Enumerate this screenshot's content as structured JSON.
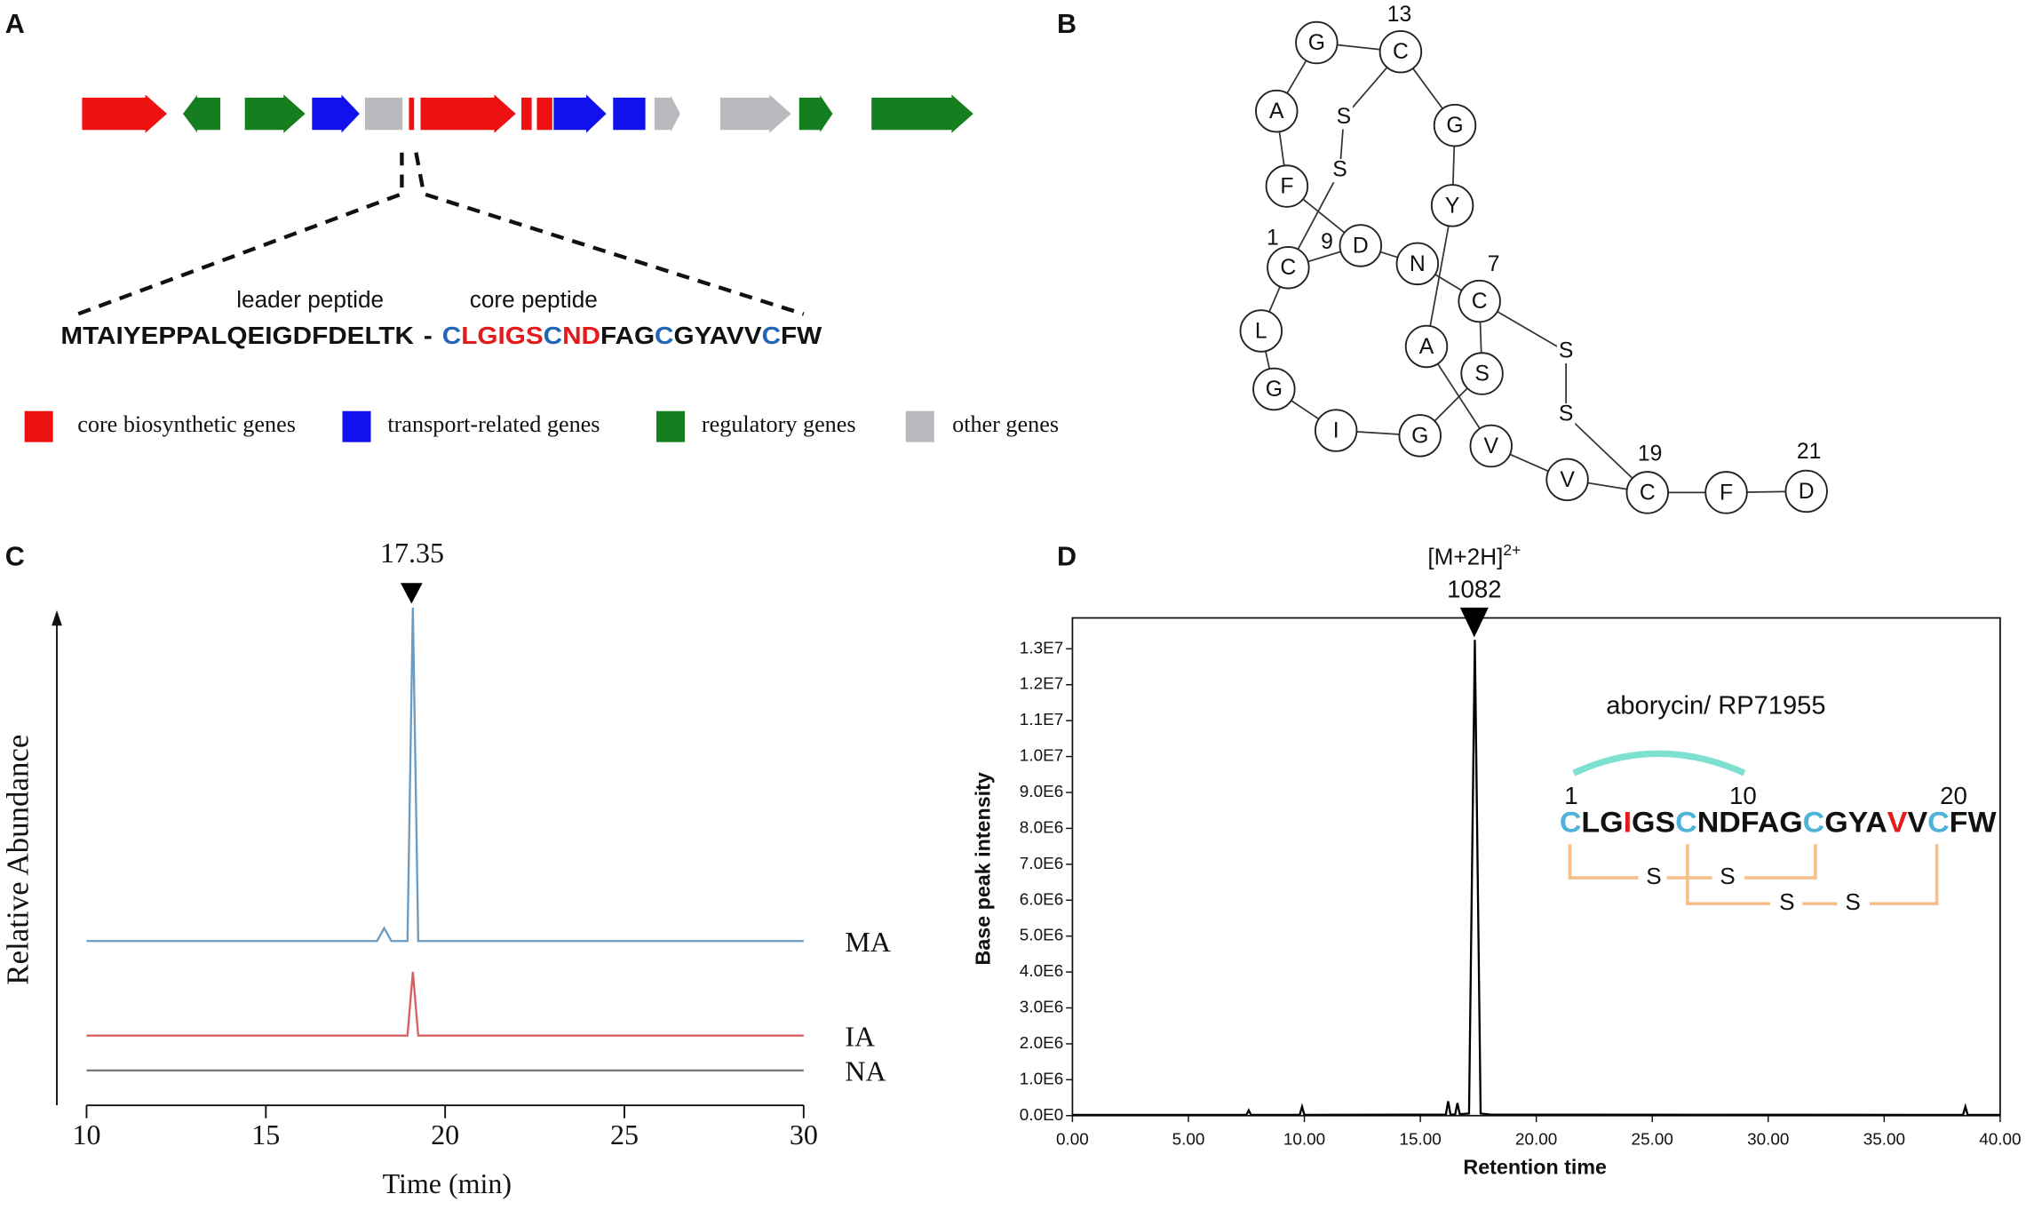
{
  "panel_labels": [
    "A",
    "B",
    "C",
    "D"
  ],
  "panel_a": {
    "leader_label": "leader peptide",
    "core_label": "core peptide",
    "leader_sequence": "MTAIYEPPALQEIGDFDELTK",
    "separator": "-",
    "core_sequence": [
      {
        "text": "C",
        "color": "#2266b8"
      },
      {
        "text": "LGIGS",
        "color": "#e41a1c"
      },
      {
        "text": "C",
        "color": "#2266b8"
      },
      {
        "text": "ND",
        "color": "#e41a1c"
      },
      {
        "text": "FAG",
        "color": "#111111"
      },
      {
        "text": "C",
        "color": "#2266b8"
      },
      {
        "text": "GYAVV",
        "color": "#111111"
      },
      {
        "text": "C",
        "color": "#2266b8"
      },
      {
        "text": "FW",
        "color": "#111111"
      }
    ],
    "legend": [
      {
        "label": "core biosynthetic genes",
        "color": "#ee1111"
      },
      {
        "label": "transport-related genes",
        "color": "#1111ee"
      },
      {
        "label": "regulatory genes",
        "color": "#157f1f"
      },
      {
        "label": "other genes",
        "color": "#b8babd"
      }
    ]
  },
  "panel_b": {
    "residues": [
      "C",
      "L",
      "G",
      "I",
      "G",
      "S",
      "C",
      "N",
      "D",
      "F",
      "A",
      "G",
      "C",
      "G",
      "Y",
      "A",
      "V",
      "V",
      "C",
      "F",
      "D"
    ],
    "position_labels": [
      "13",
      "9",
      "1",
      "7",
      "19",
      "21"
    ],
    "disulfide_atoms": [
      "S",
      "S",
      "S",
      "S"
    ]
  },
  "chart_data": [
    {
      "type": "line",
      "xlabel": "Time (min)",
      "ylabel": "Relative Abundance",
      "xlim": [
        10,
        30
      ],
      "xticks": [
        10,
        15,
        20,
        25,
        30
      ],
      "ylim": [
        0,
        100
      ],
      "peak_label": "17.35",
      "series": [
        {
          "name": "MA",
          "color": "#6a9bc3",
          "x": [
            10,
            18.1,
            18.3,
            18.5,
            18.95,
            19.1,
            19.25,
            30
          ],
          "values": [
            33,
            33,
            35.6,
            33,
            33,
            100,
            33,
            33
          ]
        },
        {
          "name": "IA",
          "color": "#d96060",
          "x": [
            10,
            18.95,
            19.1,
            19.25,
            30
          ],
          "values": [
            14,
            14,
            26.8,
            14,
            14
          ]
        },
        {
          "name": "NA",
          "color": "#777777",
          "x": [
            10,
            30
          ],
          "values": [
            7,
            7
          ]
        }
      ]
    },
    {
      "type": "line",
      "xlabel": "Retention time",
      "ylabel": "Base peak intensity",
      "xlim": [
        0,
        40
      ],
      "ylim": [
        0,
        13860000
      ],
      "xticks": [
        {
          "value": 0,
          "label": "0.00"
        },
        {
          "value": 5,
          "label": "5.00"
        },
        {
          "value": 10,
          "label": "10.00"
        },
        {
          "value": 15,
          "label": "15.00"
        },
        {
          "value": 20,
          "label": "20.00"
        },
        {
          "value": 25,
          "label": "25.00"
        },
        {
          "value": 30,
          "label": "30.00"
        },
        {
          "value": 35,
          "label": "35.00"
        },
        {
          "value": 40,
          "label": "40.00"
        }
      ],
      "yticks": [
        {
          "value": 0,
          "label": "0.0E0"
        },
        {
          "value": 1000000,
          "label": "1.0E6"
        },
        {
          "value": 2000000,
          "label": "2.0E6"
        },
        {
          "value": 3000000,
          "label": "3.0E6"
        },
        {
          "value": 4000000,
          "label": "4.0E6"
        },
        {
          "value": 5000000,
          "label": "5.0E6"
        },
        {
          "value": 6000000,
          "label": "6.0E6"
        },
        {
          "value": 7000000,
          "label": "7.0E6"
        },
        {
          "value": 8000000,
          "label": "8.0E6"
        },
        {
          "value": 9000000,
          "label": "9.0E6"
        },
        {
          "value": 10000000,
          "label": "1.0E7"
        },
        {
          "value": 11000000,
          "label": "1.1E7"
        },
        {
          "value": 12000000,
          "label": "1.2E7"
        },
        {
          "value": 13000000,
          "label": "1.3E7"
        }
      ],
      "color": "#000000",
      "x": [
        0,
        7.5,
        7.6,
        7.7,
        9.8,
        9.9,
        10.0,
        16.1,
        16.2,
        16.3,
        16.5,
        16.6,
        16.7,
        17.1,
        17.35,
        17.6,
        18.0,
        38.4,
        38.5,
        38.6,
        40
      ],
      "values": [
        20000,
        20000,
        150000,
        20000,
        20000,
        250000,
        20000,
        30000,
        400000,
        30000,
        30000,
        350000,
        40000,
        60000,
        13250000,
        60000,
        30000,
        20000,
        250000,
        20000,
        20000
      ],
      "peak_label_ion": "[M+2H]",
      "peak_label_charge": "2+",
      "peak_label_mz": "1082",
      "inset": {
        "title": "aborycin/ RP71955",
        "position_numbers": [
          "1",
          "10",
          "20"
        ],
        "sequence": [
          {
            "text": "C",
            "color": "#4fb3d9"
          },
          {
            "text": "LG",
            "color": "#111111"
          },
          {
            "text": "I",
            "color": "#e41a1c"
          },
          {
            "text": "GS",
            "color": "#111111"
          },
          {
            "text": "C",
            "color": "#4fb3d9"
          },
          {
            "text": "NDFAG",
            "color": "#111111"
          },
          {
            "text": "C",
            "color": "#4fb3d9"
          },
          {
            "text": "GYA",
            "color": "#111111"
          },
          {
            "text": "V",
            "color": "#e41a1c"
          },
          {
            "text": "V",
            "color": "#111111"
          },
          {
            "text": "C",
            "color": "#4fb3d9"
          },
          {
            "text": "FW",
            "color": "#111111"
          }
        ],
        "disulfide_atoms": [
          "S",
          "S",
          "S",
          "S"
        ]
      }
    }
  ]
}
